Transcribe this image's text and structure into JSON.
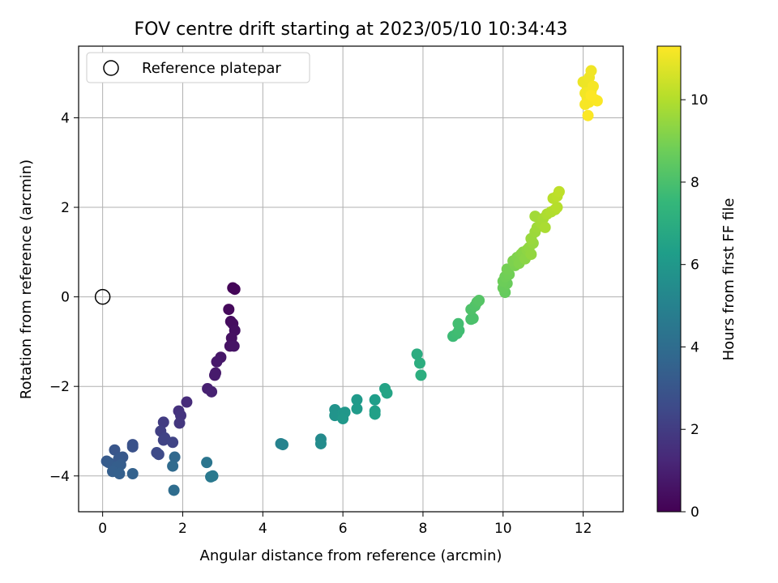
{
  "chart_data": {
    "type": "scatter",
    "title": "FOV centre drift starting at 2023/05/10 10:34:43",
    "xlabel": "Angular distance from reference (arcmin)",
    "ylabel": "Rotation from reference (arcmin)",
    "xlim": [
      -0.6,
      13.0
    ],
    "ylim": [
      -4.8,
      5.6
    ],
    "xticks": [
      0,
      2,
      4,
      6,
      8,
      10,
      12
    ],
    "yticks": [
      -4,
      -2,
      0,
      2,
      4
    ],
    "xtick_labels": [
      "0",
      "2",
      "4",
      "6",
      "8",
      "10",
      "12"
    ],
    "ytick_labels": [
      "−4",
      "−2",
      "0",
      "2",
      "4"
    ],
    "grid": true,
    "legend": {
      "placement": "top-left",
      "entries": [
        "Reference platepar"
      ]
    },
    "reference_point": {
      "x": 0,
      "y": 0,
      "label": "Reference platepar"
    },
    "colorbar": {
      "label": "Hours from first FF file",
      "min": 0,
      "max": 11.3,
      "ticks": [
        0,
        2,
        4,
        6,
        8,
        10
      ],
      "tick_labels": [
        "0",
        "2",
        "4",
        "6",
        "8",
        "10"
      ],
      "colormap": [
        "#440154",
        "#482878",
        "#3e4a89",
        "#31688e",
        "#26828e",
        "#1f9e89",
        "#35b779",
        "#6ece58",
        "#b5de2b",
        "#fde725"
      ]
    },
    "points": [
      {
        "x": 3.25,
        "y": 0.2,
        "c": 0.1
      },
      {
        "x": 3.3,
        "y": 0.17,
        "c": 0.15
      },
      {
        "x": 3.15,
        "y": -0.28,
        "c": 0.25
      },
      {
        "x": 3.2,
        "y": -0.55,
        "c": 0.35
      },
      {
        "x": 3.25,
        "y": -0.6,
        "c": 0.4
      },
      {
        "x": 3.3,
        "y": -0.75,
        "c": 0.45
      },
      {
        "x": 3.22,
        "y": -0.92,
        "c": 0.5
      },
      {
        "x": 3.18,
        "y": -1.1,
        "c": 0.55
      },
      {
        "x": 3.28,
        "y": -1.1,
        "c": 0.6
      },
      {
        "x": 2.95,
        "y": -1.35,
        "c": 0.7
      },
      {
        "x": 2.85,
        "y": -1.45,
        "c": 0.75
      },
      {
        "x": 2.82,
        "y": -1.7,
        "c": 0.8
      },
      {
        "x": 2.8,
        "y": -1.75,
        "c": 0.85
      },
      {
        "x": 2.62,
        "y": -2.05,
        "c": 1.0
      },
      {
        "x": 2.72,
        "y": -2.12,
        "c": 1.05
      },
      {
        "x": 2.1,
        "y": -2.35,
        "c": 1.4
      },
      {
        "x": 1.9,
        "y": -2.55,
        "c": 1.6
      },
      {
        "x": 1.95,
        "y": -2.65,
        "c": 1.7
      },
      {
        "x": 1.92,
        "y": -2.82,
        "c": 1.8
      },
      {
        "x": 1.52,
        "y": -2.8,
        "c": 2.0
      },
      {
        "x": 1.45,
        "y": -3.0,
        "c": 2.1
      },
      {
        "x": 1.55,
        "y": -3.15,
        "c": 2.2
      },
      {
        "x": 1.52,
        "y": -3.2,
        "c": 2.25
      },
      {
        "x": 1.75,
        "y": -3.25,
        "c": 2.3
      },
      {
        "x": 1.35,
        "y": -3.48,
        "c": 2.5
      },
      {
        "x": 1.4,
        "y": -3.52,
        "c": 2.55
      },
      {
        "x": 0.75,
        "y": -3.3,
        "c": 2.8
      },
      {
        "x": 0.75,
        "y": -3.35,
        "c": 2.85
      },
      {
        "x": 0.3,
        "y": -3.42,
        "c": 3.0
      },
      {
        "x": 0.5,
        "y": -3.58,
        "c": 3.1
      },
      {
        "x": 0.4,
        "y": -3.62,
        "c": 3.15
      },
      {
        "x": 0.1,
        "y": -3.67,
        "c": 3.2
      },
      {
        "x": 0.15,
        "y": -3.7,
        "c": 3.25
      },
      {
        "x": 0.45,
        "y": -3.75,
        "c": 3.3
      },
      {
        "x": 0.35,
        "y": -3.8,
        "c": 3.35
      },
      {
        "x": 0.25,
        "y": -3.9,
        "c": 3.4
      },
      {
        "x": 0.42,
        "y": -3.95,
        "c": 3.45
      },
      {
        "x": 0.75,
        "y": -3.95,
        "c": 3.5
      },
      {
        "x": 1.8,
        "y": -3.58,
        "c": 3.8
      },
      {
        "x": 1.75,
        "y": -3.78,
        "c": 3.9
      },
      {
        "x": 1.78,
        "y": -4.32,
        "c": 4.0
      },
      {
        "x": 2.6,
        "y": -3.7,
        "c": 4.4
      },
      {
        "x": 2.7,
        "y": -4.02,
        "c": 4.55
      },
      {
        "x": 2.75,
        "y": -4.0,
        "c": 4.6
      },
      {
        "x": 4.45,
        "y": -3.28,
        "c": 5.0
      },
      {
        "x": 4.5,
        "y": -3.3,
        "c": 5.05
      },
      {
        "x": 5.45,
        "y": -3.18,
        "c": 5.4
      },
      {
        "x": 5.45,
        "y": -3.28,
        "c": 5.45
      },
      {
        "x": 5.8,
        "y": -2.52,
        "c": 5.8
      },
      {
        "x": 5.8,
        "y": -2.65,
        "c": 5.85
      },
      {
        "x": 6.0,
        "y": -2.6,
        "c": 5.9
      },
      {
        "x": 6.05,
        "y": -2.58,
        "c": 5.95
      },
      {
        "x": 6.0,
        "y": -2.72,
        "c": 6.0
      },
      {
        "x": 6.35,
        "y": -2.3,
        "c": 6.1
      },
      {
        "x": 6.35,
        "y": -2.5,
        "c": 6.15
      },
      {
        "x": 6.8,
        "y": -2.3,
        "c": 6.3
      },
      {
        "x": 6.8,
        "y": -2.55,
        "c": 6.35
      },
      {
        "x": 6.8,
        "y": -2.62,
        "c": 6.4
      },
      {
        "x": 7.05,
        "y": -2.05,
        "c": 6.55
      },
      {
        "x": 7.1,
        "y": -2.15,
        "c": 6.6
      },
      {
        "x": 7.85,
        "y": -1.28,
        "c": 7.0
      },
      {
        "x": 7.92,
        "y": -1.48,
        "c": 7.05
      },
      {
        "x": 7.95,
        "y": -1.75,
        "c": 7.1
      },
      {
        "x": 8.75,
        "y": -0.88,
        "c": 7.7
      },
      {
        "x": 8.85,
        "y": -0.82,
        "c": 7.75
      },
      {
        "x": 8.9,
        "y": -0.75,
        "c": 7.8
      },
      {
        "x": 8.88,
        "y": -0.6,
        "c": 7.85
      },
      {
        "x": 9.2,
        "y": -0.5,
        "c": 8.0
      },
      {
        "x": 9.25,
        "y": -0.48,
        "c": 8.05
      },
      {
        "x": 9.2,
        "y": -0.28,
        "c": 8.1
      },
      {
        "x": 9.3,
        "y": -0.2,
        "c": 8.15
      },
      {
        "x": 9.35,
        "y": -0.12,
        "c": 8.2
      },
      {
        "x": 9.4,
        "y": -0.08,
        "c": 8.25
      },
      {
        "x": 10.05,
        "y": 0.1,
        "c": 8.6
      },
      {
        "x": 10.0,
        "y": 0.2,
        "c": 8.65
      },
      {
        "x": 10.1,
        "y": 0.3,
        "c": 8.7
      },
      {
        "x": 10.0,
        "y": 0.35,
        "c": 8.75
      },
      {
        "x": 10.05,
        "y": 0.45,
        "c": 8.8
      },
      {
        "x": 10.15,
        "y": 0.5,
        "c": 8.85
      },
      {
        "x": 10.1,
        "y": 0.62,
        "c": 8.9
      },
      {
        "x": 10.3,
        "y": 0.7,
        "c": 9.0
      },
      {
        "x": 10.25,
        "y": 0.8,
        "c": 9.05
      },
      {
        "x": 10.35,
        "y": 0.88,
        "c": 9.1
      },
      {
        "x": 10.4,
        "y": 0.75,
        "c": 9.15
      },
      {
        "x": 10.45,
        "y": 0.95,
        "c": 9.2
      },
      {
        "x": 10.5,
        "y": 1.0,
        "c": 9.25
      },
      {
        "x": 10.55,
        "y": 0.85,
        "c": 9.3
      },
      {
        "x": 10.6,
        "y": 1.05,
        "c": 9.35
      },
      {
        "x": 10.65,
        "y": 1.1,
        "c": 9.4
      },
      {
        "x": 10.7,
        "y": 0.95,
        "c": 9.45
      },
      {
        "x": 10.75,
        "y": 1.2,
        "c": 9.5
      },
      {
        "x": 10.7,
        "y": 1.3,
        "c": 9.55
      },
      {
        "x": 10.8,
        "y": 1.45,
        "c": 9.6
      },
      {
        "x": 10.85,
        "y": 1.55,
        "c": 9.65
      },
      {
        "x": 10.8,
        "y": 1.8,
        "c": 9.7
      },
      {
        "x": 10.95,
        "y": 1.65,
        "c": 9.75
      },
      {
        "x": 11.0,
        "y": 1.75,
        "c": 9.8
      },
      {
        "x": 11.05,
        "y": 1.55,
        "c": 9.85
      },
      {
        "x": 11.1,
        "y": 1.85,
        "c": 9.9
      },
      {
        "x": 11.2,
        "y": 1.9,
        "c": 9.95
      },
      {
        "x": 11.3,
        "y": 1.95,
        "c": 10.0
      },
      {
        "x": 11.35,
        "y": 2.0,
        "c": 10.05
      },
      {
        "x": 11.25,
        "y": 2.2,
        "c": 10.1
      },
      {
        "x": 11.35,
        "y": 2.25,
        "c": 10.15
      },
      {
        "x": 11.4,
        "y": 2.35,
        "c": 10.2
      },
      {
        "x": 12.0,
        "y": 4.8,
        "c": 11.0
      },
      {
        "x": 12.1,
        "y": 4.7,
        "c": 11.02
      },
      {
        "x": 12.15,
        "y": 4.9,
        "c": 11.05
      },
      {
        "x": 12.2,
        "y": 5.05,
        "c": 11.08
      },
      {
        "x": 12.05,
        "y": 4.55,
        "c": 11.1
      },
      {
        "x": 12.1,
        "y": 4.45,
        "c": 11.12
      },
      {
        "x": 12.2,
        "y": 4.6,
        "c": 11.14
      },
      {
        "x": 12.25,
        "y": 4.7,
        "c": 11.16
      },
      {
        "x": 12.05,
        "y": 4.3,
        "c": 11.18
      },
      {
        "x": 12.15,
        "y": 4.35,
        "c": 11.2
      },
      {
        "x": 12.3,
        "y": 4.4,
        "c": 11.22
      },
      {
        "x": 12.35,
        "y": 4.38,
        "c": 11.24
      },
      {
        "x": 12.12,
        "y": 4.05,
        "c": 11.26
      },
      {
        "x": 12.2,
        "y": 4.5,
        "c": 11.28
      }
    ]
  }
}
